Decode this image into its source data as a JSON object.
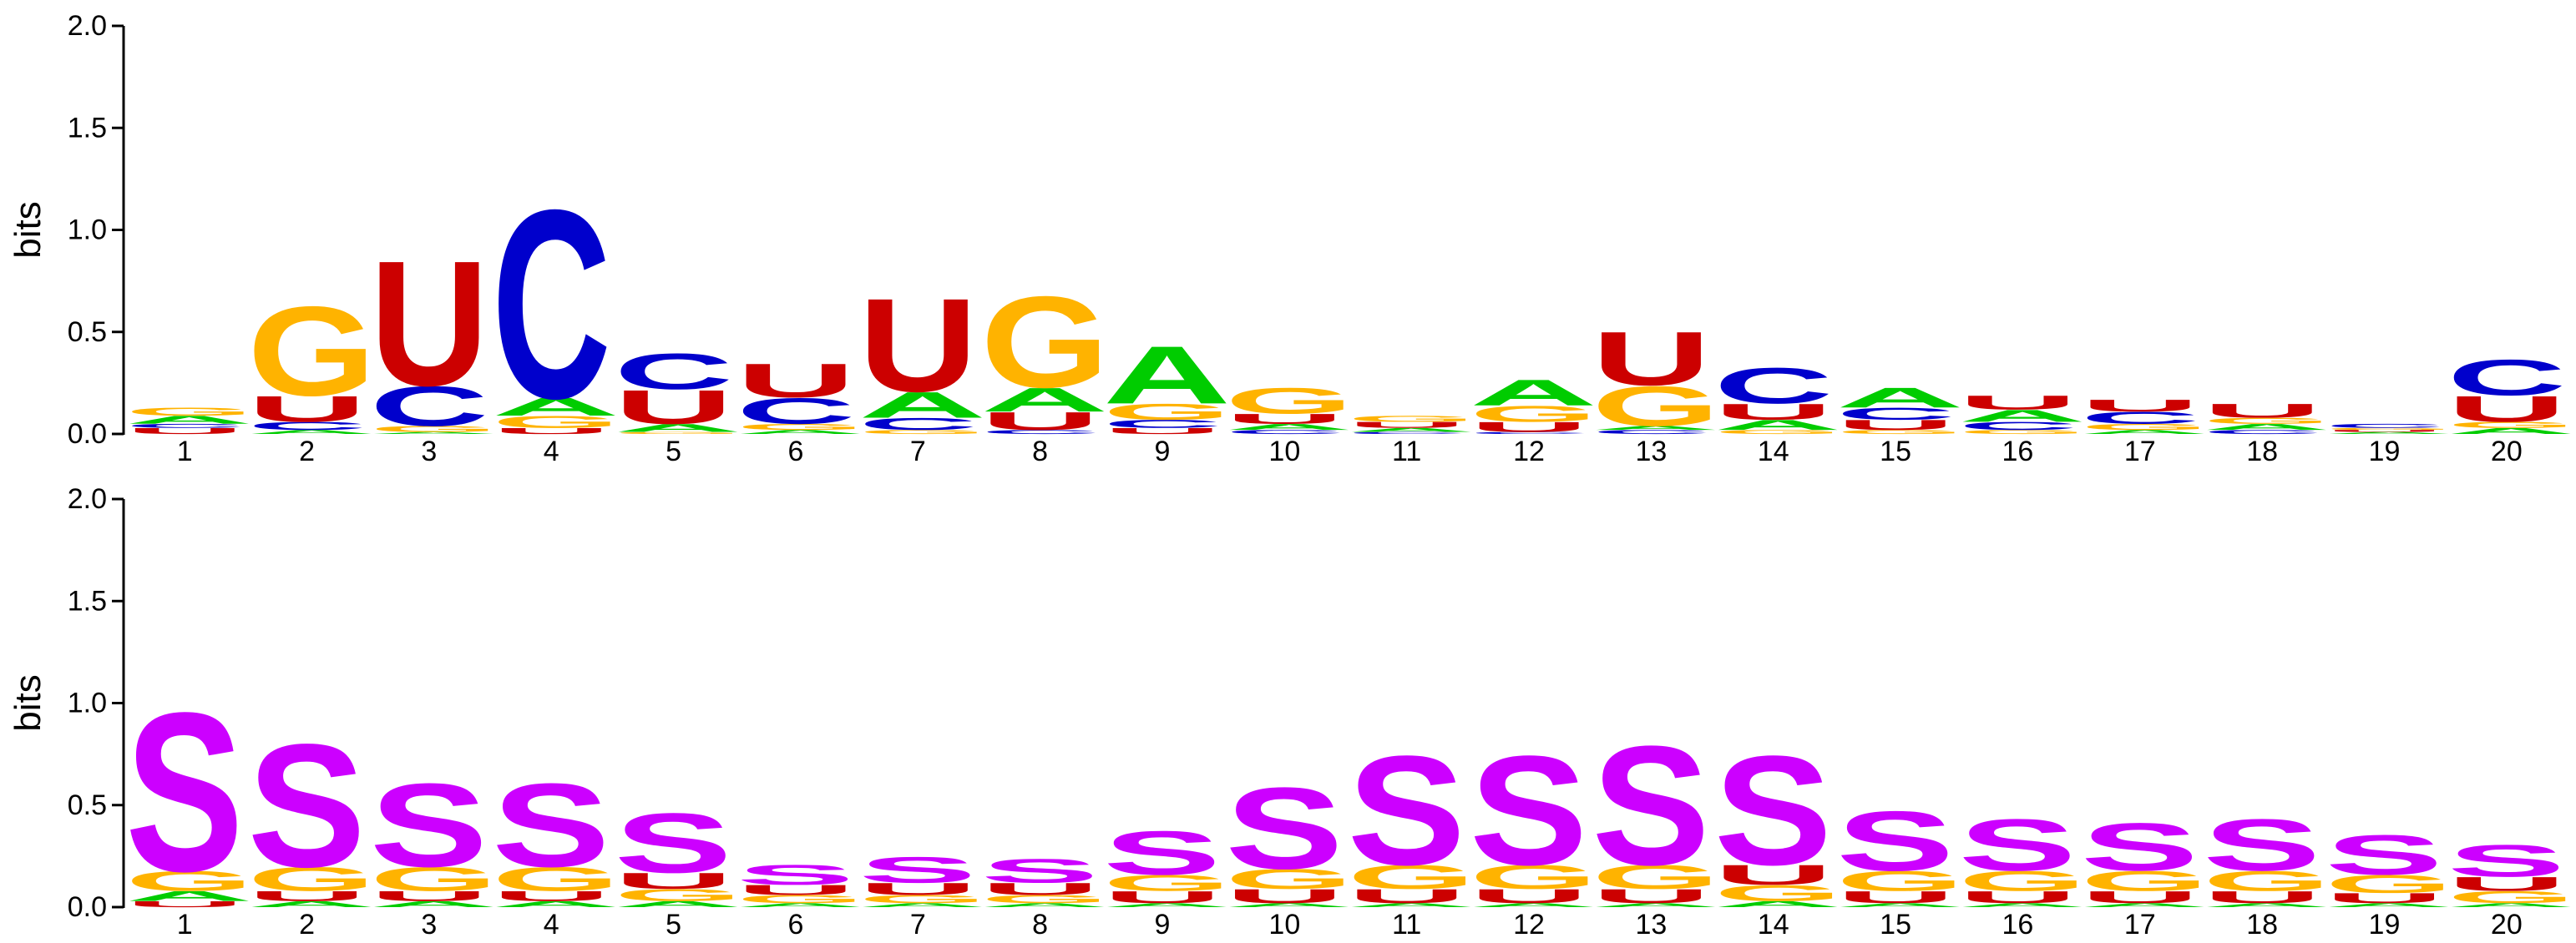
{
  "colors": {
    "A": "#00cc00",
    "C": "#0000cc",
    "G": "#ffb300",
    "U": "#cc0000",
    "S": "#cc00ff",
    "background": "#ffffff",
    "axis": "#000000"
  },
  "chart_data": [
    {
      "type": "sequence_logo",
      "ylabel": "bits",
      "ylim": [
        0,
        2.0
      ],
      "yticks": [
        "0.0",
        "0.5",
        "1.0",
        "1.5",
        "2.0"
      ],
      "positions": [
        "1",
        "2",
        "3",
        "4",
        "5",
        "6",
        "7",
        "8",
        "9",
        "10",
        "11",
        "12",
        "13",
        "14",
        "15",
        "16",
        "17",
        "18",
        "19",
        "20"
      ],
      "stacks": [
        [
          {
            "letter": "U",
            "bits": 0.03
          },
          {
            "letter": "C",
            "bits": 0.02
          },
          {
            "letter": "A",
            "bits": 0.04
          },
          {
            "letter": "G",
            "bits": 0.04
          }
        ],
        [
          {
            "letter": "A",
            "bits": 0.02
          },
          {
            "letter": "C",
            "bits": 0.04
          },
          {
            "letter": "U",
            "bits": 0.13
          },
          {
            "letter": "G",
            "bits": 0.45
          }
        ],
        [
          {
            "letter": "A",
            "bits": 0.01
          },
          {
            "letter": "G",
            "bits": 0.03
          },
          {
            "letter": "C",
            "bits": 0.2
          },
          {
            "letter": "U",
            "bits": 0.63
          }
        ],
        [
          {
            "letter": "U",
            "bits": 0.03
          },
          {
            "letter": "G",
            "bits": 0.06
          },
          {
            "letter": "A",
            "bits": 0.09
          },
          {
            "letter": "C",
            "bits": 0.95
          }
        ],
        [
          {
            "letter": "G",
            "bits": 0.01
          },
          {
            "letter": "A",
            "bits": 0.04
          },
          {
            "letter": "U",
            "bits": 0.17
          },
          {
            "letter": "C",
            "bits": 0.18
          }
        ],
        [
          {
            "letter": "A",
            "bits": 0.02
          },
          {
            "letter": "G",
            "bits": 0.03
          },
          {
            "letter": "C",
            "bits": 0.13
          },
          {
            "letter": "U",
            "bits": 0.17
          }
        ],
        [
          {
            "letter": "G",
            "bits": 0.02
          },
          {
            "letter": "C",
            "bits": 0.06
          },
          {
            "letter": "A",
            "bits": 0.13
          },
          {
            "letter": "U",
            "bits": 0.47
          }
        ],
        [
          {
            "letter": "C",
            "bits": 0.02
          },
          {
            "letter": "U",
            "bits": 0.09
          },
          {
            "letter": "A",
            "bits": 0.12
          },
          {
            "letter": "G",
            "bits": 0.46
          }
        ],
        [
          {
            "letter": "U",
            "bits": 0.03
          },
          {
            "letter": "C",
            "bits": 0.04
          },
          {
            "letter": "G",
            "bits": 0.08
          },
          {
            "letter": "A",
            "bits": 0.29
          }
        ],
        [
          {
            "letter": "C",
            "bits": 0.02
          },
          {
            "letter": "A",
            "bits": 0.03
          },
          {
            "letter": "U",
            "bits": 0.05
          },
          {
            "letter": "G",
            "bits": 0.13
          }
        ],
        [
          {
            "letter": "C",
            "bits": 0.01
          },
          {
            "letter": "A",
            "bits": 0.02
          },
          {
            "letter": "U",
            "bits": 0.03
          },
          {
            "letter": "G",
            "bits": 0.03
          }
        ],
        [
          {
            "letter": "C",
            "bits": 0.01
          },
          {
            "letter": "U",
            "bits": 0.05
          },
          {
            "letter": "G",
            "bits": 0.08
          },
          {
            "letter": "A",
            "bits": 0.13
          }
        ],
        [
          {
            "letter": "C",
            "bits": 0.02
          },
          {
            "letter": "A",
            "bits": 0.02
          },
          {
            "letter": "G",
            "bits": 0.2
          },
          {
            "letter": "U",
            "bits": 0.27
          }
        ],
        [
          {
            "letter": "G",
            "bits": 0.02
          },
          {
            "letter": "A",
            "bits": 0.05
          },
          {
            "letter": "U",
            "bits": 0.08
          },
          {
            "letter": "C",
            "bits": 0.18
          }
        ],
        [
          {
            "letter": "G",
            "bits": 0.02
          },
          {
            "letter": "U",
            "bits": 0.05
          },
          {
            "letter": "C",
            "bits": 0.06
          },
          {
            "letter": "A",
            "bits": 0.1
          }
        ],
        [
          {
            "letter": "G",
            "bits": 0.02
          },
          {
            "letter": "C",
            "bits": 0.04
          },
          {
            "letter": "A",
            "bits": 0.06
          },
          {
            "letter": "U",
            "bits": 0.07
          }
        ],
        [
          {
            "letter": "A",
            "bits": 0.02
          },
          {
            "letter": "G",
            "bits": 0.03
          },
          {
            "letter": "C",
            "bits": 0.06
          },
          {
            "letter": "U",
            "bits": 0.06
          }
        ],
        [
          {
            "letter": "C",
            "bits": 0.02
          },
          {
            "letter": "A",
            "bits": 0.03
          },
          {
            "letter": "G",
            "bits": 0.03
          },
          {
            "letter": "U",
            "bits": 0.07
          }
        ],
        [
          {
            "letter": "A",
            "bits": 0.01
          },
          {
            "letter": "U",
            "bits": 0.01
          },
          {
            "letter": "G",
            "bits": 0.01
          },
          {
            "letter": "C",
            "bits": 0.02
          }
        ],
        [
          {
            "letter": "A",
            "bits": 0.03
          },
          {
            "letter": "G",
            "bits": 0.03
          },
          {
            "letter": "U",
            "bits": 0.13
          },
          {
            "letter": "C",
            "bits": 0.18
          }
        ]
      ]
    },
    {
      "type": "sequence_logo",
      "ylabel": "bits",
      "ylim": [
        0,
        2.0
      ],
      "yticks": [
        "0.0",
        "0.5",
        "1.0",
        "1.5",
        "2.0"
      ],
      "positions": [
        "1",
        "2",
        "3",
        "4",
        "5",
        "6",
        "7",
        "8",
        "9",
        "10",
        "11",
        "12",
        "13",
        "14",
        "15",
        "16",
        "17",
        "18",
        "19",
        "20"
      ],
      "stacks": [
        [
          {
            "letter": "U",
            "bits": 0.03
          },
          {
            "letter": "A",
            "bits": 0.05
          },
          {
            "letter": "G",
            "bits": 0.1
          },
          {
            "letter": "S",
            "bits": 0.8
          }
        ],
        [
          {
            "letter": "A",
            "bits": 0.03
          },
          {
            "letter": "U",
            "bits": 0.05
          },
          {
            "letter": "G",
            "bits": 0.12
          },
          {
            "letter": "S",
            "bits": 0.62
          }
        ],
        [
          {
            "letter": "A",
            "bits": 0.03
          },
          {
            "letter": "U",
            "bits": 0.05
          },
          {
            "letter": "G",
            "bits": 0.12
          },
          {
            "letter": "S",
            "bits": 0.42
          }
        ],
        [
          {
            "letter": "A",
            "bits": 0.03
          },
          {
            "letter": "U",
            "bits": 0.05
          },
          {
            "letter": "G",
            "bits": 0.12
          },
          {
            "letter": "S",
            "bits": 0.42
          }
        ],
        [
          {
            "letter": "A",
            "bits": 0.03
          },
          {
            "letter": "G",
            "bits": 0.06
          },
          {
            "letter": "U",
            "bits": 0.08
          },
          {
            "letter": "S",
            "bits": 0.3
          }
        ],
        [
          {
            "letter": "A",
            "bits": 0.02
          },
          {
            "letter": "G",
            "bits": 0.04
          },
          {
            "letter": "U",
            "bits": 0.05
          },
          {
            "letter": "S",
            "bits": 0.1
          }
        ],
        [
          {
            "letter": "A",
            "bits": 0.02
          },
          {
            "letter": "G",
            "bits": 0.04
          },
          {
            "letter": "U",
            "bits": 0.06
          },
          {
            "letter": "S",
            "bits": 0.13
          }
        ],
        [
          {
            "letter": "A",
            "bits": 0.02
          },
          {
            "letter": "G",
            "bits": 0.04
          },
          {
            "letter": "U",
            "bits": 0.06
          },
          {
            "letter": "S",
            "bits": 0.12
          }
        ],
        [
          {
            "letter": "A",
            "bits": 0.02
          },
          {
            "letter": "U",
            "bits": 0.06
          },
          {
            "letter": "G",
            "bits": 0.08
          },
          {
            "letter": "S",
            "bits": 0.22
          }
        ],
        [
          {
            "letter": "A",
            "bits": 0.02
          },
          {
            "letter": "U",
            "bits": 0.07
          },
          {
            "letter": "G",
            "bits": 0.1
          },
          {
            "letter": "S",
            "bits": 0.41
          }
        ],
        [
          {
            "letter": "A",
            "bits": 0.02
          },
          {
            "letter": "U",
            "bits": 0.07
          },
          {
            "letter": "G",
            "bits": 0.12
          },
          {
            "letter": "S",
            "bits": 0.55
          }
        ],
        [
          {
            "letter": "A",
            "bits": 0.02
          },
          {
            "letter": "U",
            "bits": 0.07
          },
          {
            "letter": "G",
            "bits": 0.12
          },
          {
            "letter": "S",
            "bits": 0.55
          }
        ],
        [
          {
            "letter": "A",
            "bits": 0.02
          },
          {
            "letter": "U",
            "bits": 0.07
          },
          {
            "letter": "G",
            "bits": 0.12
          },
          {
            "letter": "S",
            "bits": 0.6
          }
        ],
        [
          {
            "letter": "A",
            "bits": 0.03
          },
          {
            "letter": "G",
            "bits": 0.08
          },
          {
            "letter": "U",
            "bits": 0.1
          },
          {
            "letter": "S",
            "bits": 0.55
          }
        ],
        [
          {
            "letter": "A",
            "bits": 0.02
          },
          {
            "letter": "U",
            "bits": 0.06
          },
          {
            "letter": "G",
            "bits": 0.1
          },
          {
            "letter": "S",
            "bits": 0.3
          }
        ],
        [
          {
            "letter": "A",
            "bits": 0.02
          },
          {
            "letter": "U",
            "bits": 0.06
          },
          {
            "letter": "G",
            "bits": 0.1
          },
          {
            "letter": "S",
            "bits": 0.26
          }
        ],
        [
          {
            "letter": "A",
            "bits": 0.02
          },
          {
            "letter": "U",
            "bits": 0.06
          },
          {
            "letter": "G",
            "bits": 0.1
          },
          {
            "letter": "S",
            "bits": 0.24
          }
        ],
        [
          {
            "letter": "A",
            "bits": 0.02
          },
          {
            "letter": "U",
            "bits": 0.06
          },
          {
            "letter": "G",
            "bits": 0.1
          },
          {
            "letter": "S",
            "bits": 0.26
          }
        ],
        [
          {
            "letter": "A",
            "bits": 0.02
          },
          {
            "letter": "U",
            "bits": 0.05
          },
          {
            "letter": "G",
            "bits": 0.09
          },
          {
            "letter": "S",
            "bits": 0.2
          }
        ],
        [
          {
            "letter": "A",
            "bits": 0.02
          },
          {
            "letter": "G",
            "bits": 0.06
          },
          {
            "letter": "U",
            "bits": 0.07
          },
          {
            "letter": "S",
            "bits": 0.16
          }
        ]
      ]
    }
  ]
}
